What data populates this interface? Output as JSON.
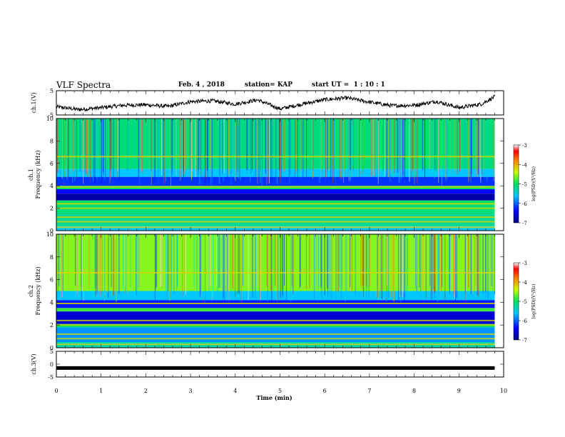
{
  "header": {
    "title": "VLF Spectra",
    "date": "Feb. 4 , 2018",
    "station": "station= KAP",
    "start_ut": "start UT =  1 : 10 : 1"
  },
  "chart_data": [
    {
      "type": "line",
      "panel": "ch1-waveform",
      "ylabel": "ch.1(V)",
      "yticks": [
        "5",
        "-5"
      ],
      "ylim": [
        -5,
        5
      ],
      "xlim": [
        0,
        10
      ],
      "x": [
        0,
        0.5,
        1,
        1.5,
        2,
        2.5,
        3,
        3.5,
        4,
        4.5,
        5,
        5.5,
        6,
        6.5,
        7,
        7.5,
        8,
        8.5,
        9,
        9.5,
        9.8
      ],
      "values": [
        -1.6,
        -2.8,
        -2.0,
        -1.0,
        -0.8,
        -1.5,
        0.5,
        0.8,
        -0.5,
        1.2,
        -2.5,
        -0.5,
        1.3,
        2.0,
        0.3,
        -1.2,
        -1.0,
        0.6,
        -2.0,
        -0.5,
        2.5
      ],
      "color": "#000000"
    },
    {
      "type": "heatmap",
      "panel": "ch1-spectrogram",
      "ylabel": "ch.1\nFrequency  (kHz)",
      "yticks": [
        "0",
        "2",
        "4",
        "6",
        "8",
        "10"
      ],
      "ylim": [
        0,
        10
      ],
      "xlim": [
        0,
        9.8
      ],
      "colorbar_label": "log(PSD)(V²/Hz)",
      "colorbar_ticks": [
        "-3",
        "-4",
        "-5",
        "-6",
        "-7"
      ],
      "clim": [
        -7,
        -3
      ],
      "bands": [
        {
          "from": 0.0,
          "to": 0.4,
          "level": -5.6
        },
        {
          "from": 0.4,
          "to": 1.5,
          "level": -5.2
        },
        {
          "from": 1.5,
          "to": 2.3,
          "level": -5.1
        },
        {
          "from": 2.3,
          "to": 2.7,
          "level": -5.0
        },
        {
          "from": 2.7,
          "to": 3.3,
          "level": -6.8
        },
        {
          "from": 3.3,
          "to": 3.7,
          "level": -6.4
        },
        {
          "from": 3.7,
          "to": 4.0,
          "level": -5.0
        },
        {
          "from": 4.0,
          "to": 4.8,
          "level": -6.2
        },
        {
          "from": 4.8,
          "to": 5.5,
          "level": -5.6
        },
        {
          "from": 5.5,
          "to": 10.0,
          "level": -5.1
        }
      ]
    },
    {
      "type": "heatmap",
      "panel": "ch2-spectrogram",
      "ylabel": "ch.2\nFrequency  (kHz)",
      "yticks": [
        "0",
        "2",
        "4",
        "6",
        "8",
        "10"
      ],
      "ylim": [
        0,
        10
      ],
      "xlim": [
        0,
        9.8
      ],
      "colorbar_label": "log(PSD)(V²/Hz)",
      "colorbar_ticks": [
        "-3",
        "-4",
        "-5",
        "-6",
        "-7"
      ],
      "clim": [
        -7,
        -3
      ],
      "bands": [
        {
          "from": 0.0,
          "to": 0.5,
          "level": -5.3
        },
        {
          "from": 0.5,
          "to": 1.8,
          "level": -5.8
        },
        {
          "from": 1.8,
          "to": 2.1,
          "level": -5.0
        },
        {
          "from": 2.1,
          "to": 3.2,
          "level": -6.6
        },
        {
          "from": 3.2,
          "to": 3.5,
          "level": -4.8
        },
        {
          "from": 3.5,
          "to": 4.2,
          "level": -6.3
        },
        {
          "from": 4.2,
          "to": 5.0,
          "level": -5.6
        },
        {
          "from": 5.0,
          "to": 10.0,
          "level": -4.6
        }
      ]
    },
    {
      "type": "line",
      "panel": "ch3-waveform",
      "ylabel": "ch.3(V)",
      "yticks": [
        "5",
        "0",
        "-5"
      ],
      "ylim": [
        -5,
        5
      ],
      "xlabel": "Time  (min)",
      "xticks": [
        "0",
        "1",
        "2",
        "3",
        "4",
        "5",
        "6",
        "7",
        "8",
        "9",
        "10"
      ],
      "xlim": [
        0,
        10
      ],
      "x": [
        0,
        9.8
      ],
      "values": [
        -1.5,
        -1.5
      ],
      "color": "#000000"
    }
  ]
}
